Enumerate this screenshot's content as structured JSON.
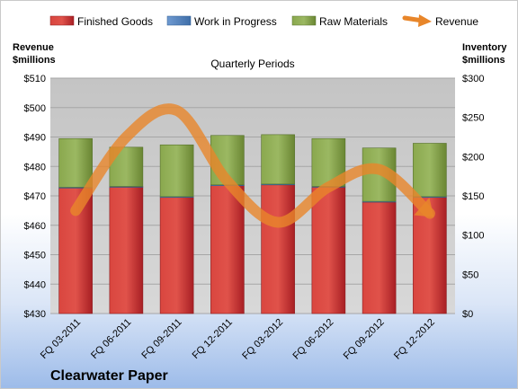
{
  "chart_data": {
    "type": "bar",
    "title": "Quarterly Periods",
    "brand": "Clearwater Paper",
    "categories": [
      "FQ 03-2011",
      "FQ 06-2011",
      "FQ 09-2011",
      "FQ 12-2011",
      "FQ 03-2012",
      "FQ 06-2012",
      "FQ 09-2012",
      "FQ 12-2012"
    ],
    "left_axis": {
      "label_line1": "Revenue",
      "label_line2": "$millions",
      "min": 430,
      "max": 510,
      "step": 10,
      "tick_labels": [
        "$430",
        "$440",
        "$450",
        "$460",
        "$470",
        "$480",
        "$490",
        "$500",
        "$510"
      ]
    },
    "right_axis": {
      "label_line1": "Inventory",
      "label_line2": "$millions",
      "min": 0,
      "max": 300,
      "step": 50,
      "tick_labels": [
        "$0",
        "$50",
        "$100",
        "$150",
        "$200",
        "$250",
        "$300"
      ]
    },
    "legend": {
      "placement": "top",
      "entries": [
        "Finished Goods",
        "Work in Progress",
        "Raw Materials",
        "Revenue"
      ]
    },
    "series": [
      {
        "name": "Finished Goods",
        "axis": "right",
        "kind": "stacked-bar",
        "color": "#c0262c",
        "values": [
          160,
          161,
          148,
          163,
          164,
          161,
          142,
          148
        ]
      },
      {
        "name": "Work in Progress",
        "axis": "right",
        "kind": "stacked-bar",
        "color": "#4f81bd",
        "values": [
          1,
          1,
          1,
          1,
          1,
          1,
          1,
          1
        ]
      },
      {
        "name": "Raw Materials",
        "axis": "right",
        "kind": "stacked-bar",
        "color": "#77933c",
        "values": [
          62,
          50,
          66,
          63,
          63,
          61,
          68,
          68
        ]
      },
      {
        "name": "Revenue",
        "axis": "left",
        "kind": "line",
        "color": "#e8862a",
        "values": [
          465,
          490,
          499,
          475,
          461,
          473,
          479,
          464
        ]
      }
    ],
    "grid": true,
    "plot_background": "#c0c0c0"
  }
}
